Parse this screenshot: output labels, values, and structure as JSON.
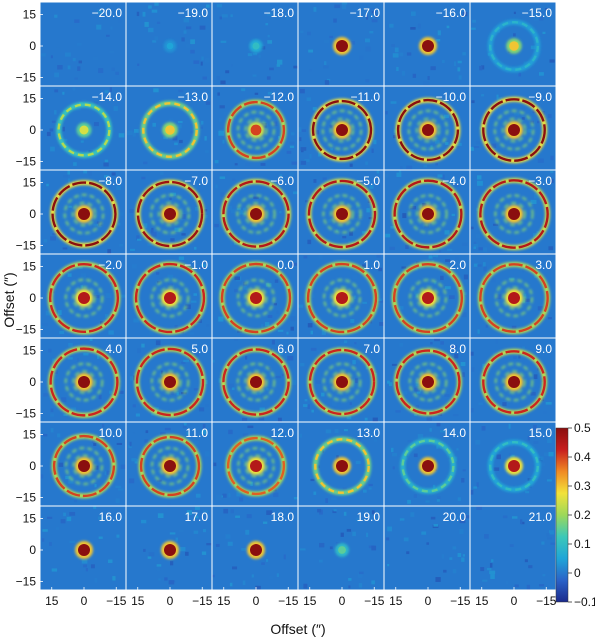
{
  "chart_data": {
    "type": "heatmap",
    "title": "",
    "xlabel": "Offset (″)",
    "ylabel": "Offset (″)",
    "x_ticks": [
      15,
      0,
      -15
    ],
    "y_ticks": [
      15,
      0,
      -15
    ],
    "grid_rows": 7,
    "grid_cols": 6,
    "channels": [
      {
        "label": "−20.0",
        "ring": 0,
        "core": 0
      },
      {
        "label": "−19.0",
        "ring": 0,
        "core": 0.05
      },
      {
        "label": "−18.0",
        "ring": 0,
        "core": 0.1
      },
      {
        "label": "−17.0",
        "ring": 0,
        "core": 0.5
      },
      {
        "label": "−16.0",
        "ring": 0,
        "core": 0.5
      },
      {
        "label": "−15.0",
        "ring": 0.08,
        "core": 0.3
      },
      {
        "label": "−14.0",
        "ring": 0.22,
        "core": 0.25
      },
      {
        "label": "−13.0",
        "ring": 0.3,
        "core": 0.3
      },
      {
        "label": "−12.0",
        "ring": 0.4,
        "core": 0.4
      },
      {
        "label": "−11.0",
        "ring": 0.5,
        "core": 0.5
      },
      {
        "label": "−10.0",
        "ring": 0.5,
        "core": 0.5
      },
      {
        "label": "−9.0",
        "ring": 0.5,
        "core": 0.5
      },
      {
        "label": "−8.0",
        "ring": 0.5,
        "core": 0.5
      },
      {
        "label": "−7.0",
        "ring": 0.48,
        "core": 0.5
      },
      {
        "label": "−6.0",
        "ring": 0.45,
        "core": 0.5
      },
      {
        "label": "−5.0",
        "ring": 0.45,
        "core": 0.5
      },
      {
        "label": "−4.0",
        "ring": 0.45,
        "core": 0.5
      },
      {
        "label": "−3.0",
        "ring": 0.45,
        "core": 0.5
      },
      {
        "label": "−2.0",
        "ring": 0.42,
        "core": 0.45
      },
      {
        "label": "−1.0",
        "ring": 0.42,
        "core": 0.45
      },
      {
        "label": "0.0",
        "ring": 0.4,
        "core": 0.45
      },
      {
        "label": "1.0",
        "ring": 0.4,
        "core": 0.45
      },
      {
        "label": "2.0",
        "ring": 0.4,
        "core": 0.45
      },
      {
        "label": "3.0",
        "ring": 0.4,
        "core": 0.45
      },
      {
        "label": "4.0",
        "ring": 0.42,
        "core": 0.5
      },
      {
        "label": "5.0",
        "ring": 0.42,
        "core": 0.5
      },
      {
        "label": "6.0",
        "ring": 0.42,
        "core": 0.5
      },
      {
        "label": "7.0",
        "ring": 0.42,
        "core": 0.5
      },
      {
        "label": "8.0",
        "ring": 0.42,
        "core": 0.5
      },
      {
        "label": "9.0",
        "ring": 0.42,
        "core": 0.5
      },
      {
        "label": "10.0",
        "ring": 0.4,
        "core": 0.5
      },
      {
        "label": "11.0",
        "ring": 0.4,
        "core": 0.5
      },
      {
        "label": "12.0",
        "ring": 0.38,
        "core": 0.45
      },
      {
        "label": "13.0",
        "ring": 0.3,
        "core": 0.5
      },
      {
        "label": "14.0",
        "ring": 0.15,
        "core": 0.5
      },
      {
        "label": "15.0",
        "ring": 0.1,
        "core": 0.45
      },
      {
        "label": "16.0",
        "ring": 0,
        "core": 0.5
      },
      {
        "label": "17.0",
        "ring": 0,
        "core": 0.5
      },
      {
        "label": "18.0",
        "ring": 0,
        "core": 0.5
      },
      {
        "label": "19.0",
        "ring": 0,
        "core": 0.15
      },
      {
        "label": "20.0",
        "ring": 0,
        "core": 0
      },
      {
        "label": "21.0",
        "ring": 0,
        "core": 0
      }
    ],
    "colorbar": {
      "min": -0.1,
      "max": 0.5,
      "ticks": [
        "0.5",
        "0.4",
        "0.3",
        "0.2",
        "0.1",
        "0",
        "−0.1"
      ],
      "colormap": [
        "#1b2a8c",
        "#2a62c8",
        "#1fa5d8",
        "#3cc8b8",
        "#9cd85a",
        "#f2e23a",
        "#f08a24",
        "#c81e1e",
        "#8a0f0f"
      ]
    }
  }
}
